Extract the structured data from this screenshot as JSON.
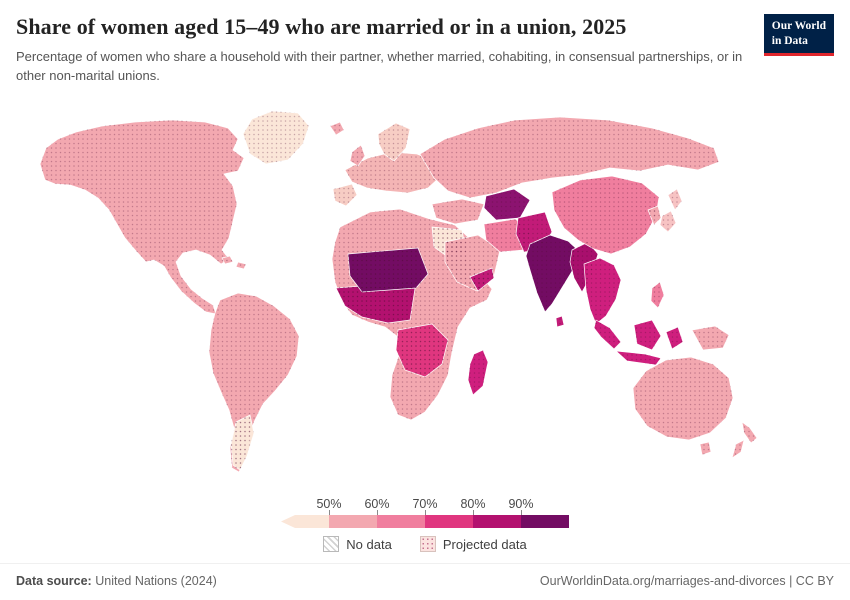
{
  "header": {
    "title": "Share of women aged 15–49 who are married or in a union, 2025",
    "subtitle": "Percentage of women who share a household with their partner, whether married, cohabiting, in consensual partnerships, or in other non-marital unions.",
    "logo_line1": "Our World",
    "logo_line2": "in Data"
  },
  "legend": {
    "ticks": [
      "50%",
      "60%",
      "70%",
      "80%",
      "90%"
    ],
    "colors": [
      "#fbe6d8",
      "#f3a8b0",
      "#f07e9e",
      "#e0367f",
      "#b3116f",
      "#730c63"
    ],
    "no_data_label": "No data",
    "projected_label": "Projected data"
  },
  "map": {
    "region_colors": {
      "greenland": "#fbe6d8",
      "north_america": "#f3a8b0",
      "caribbean": "#f3a8b0",
      "south_america": "#f3a8b0",
      "argentina": "#fbe6d8",
      "africa": "#f3a8b0",
      "west_africa": "#b3116f",
      "sahel": "#730c63",
      "central_africa": "#e0367f",
      "egypt": "#fbe6d8",
      "madagascar": "#cf1f7e",
      "europe": "#f4b5b5",
      "iberia": "#f7cdc4",
      "scandinavia": "#f7cdc4",
      "uk": "#f3a8b0",
      "iceland": "#f3a8b0",
      "russia": "#f3a8b0",
      "central_asia": "#8c1370",
      "middle_east": "#f3a8b0",
      "arabia": "#f3a8b0",
      "yemen": "#c21b78",
      "iran": "#f07e9e",
      "afghanistan_pakistan": "#c21b78",
      "india": "#730c63",
      "myanmar": "#a90f6d",
      "china": "#f07e9e",
      "korea": "#f3a8b0",
      "japan": "#f7c3c3",
      "indochina": "#cf1f7e",
      "sumatra": "#cf1f7e",
      "borneo": "#cf1f7e",
      "java": "#cf1f7e",
      "sulawesi": "#cf1f7e",
      "philippines": "#f07e9e",
      "sri_lanka": "#c21b78",
      "new_guinea": "#f3a8b0",
      "australia": "#f3a8b0",
      "tasmania": "#f3a8b0",
      "new_zealand": "#f3a8b0"
    }
  },
  "chart_data": {
    "type": "choropleth",
    "title": "Share of women aged 15–49 who are married or in a union, 2025",
    "unit": "%",
    "tick_labels": [
      "50%",
      "60%",
      "70%",
      "80%",
      "90%"
    ],
    "bins": [
      {
        "label": "<50%",
        "color": "#fbe6d8"
      },
      {
        "label": "50–60%",
        "color": "#f3a8b0"
      },
      {
        "label": "60–70%",
        "color": "#f07e9e"
      },
      {
        "label": "70–80%",
        "color": "#e0367f"
      },
      {
        "label": "80–90%",
        "color": "#b3116f"
      },
      {
        "label": "≥90%",
        "color": "#730c63"
      }
    ],
    "flags": [
      "No data",
      "Projected data"
    ],
    "legend_position": "bottom-center"
  },
  "footer": {
    "source_label": "Data source:",
    "source_text": "United Nations (2024)",
    "credit": "OurWorldinData.org/marriages-and-divorces | CC BY"
  }
}
